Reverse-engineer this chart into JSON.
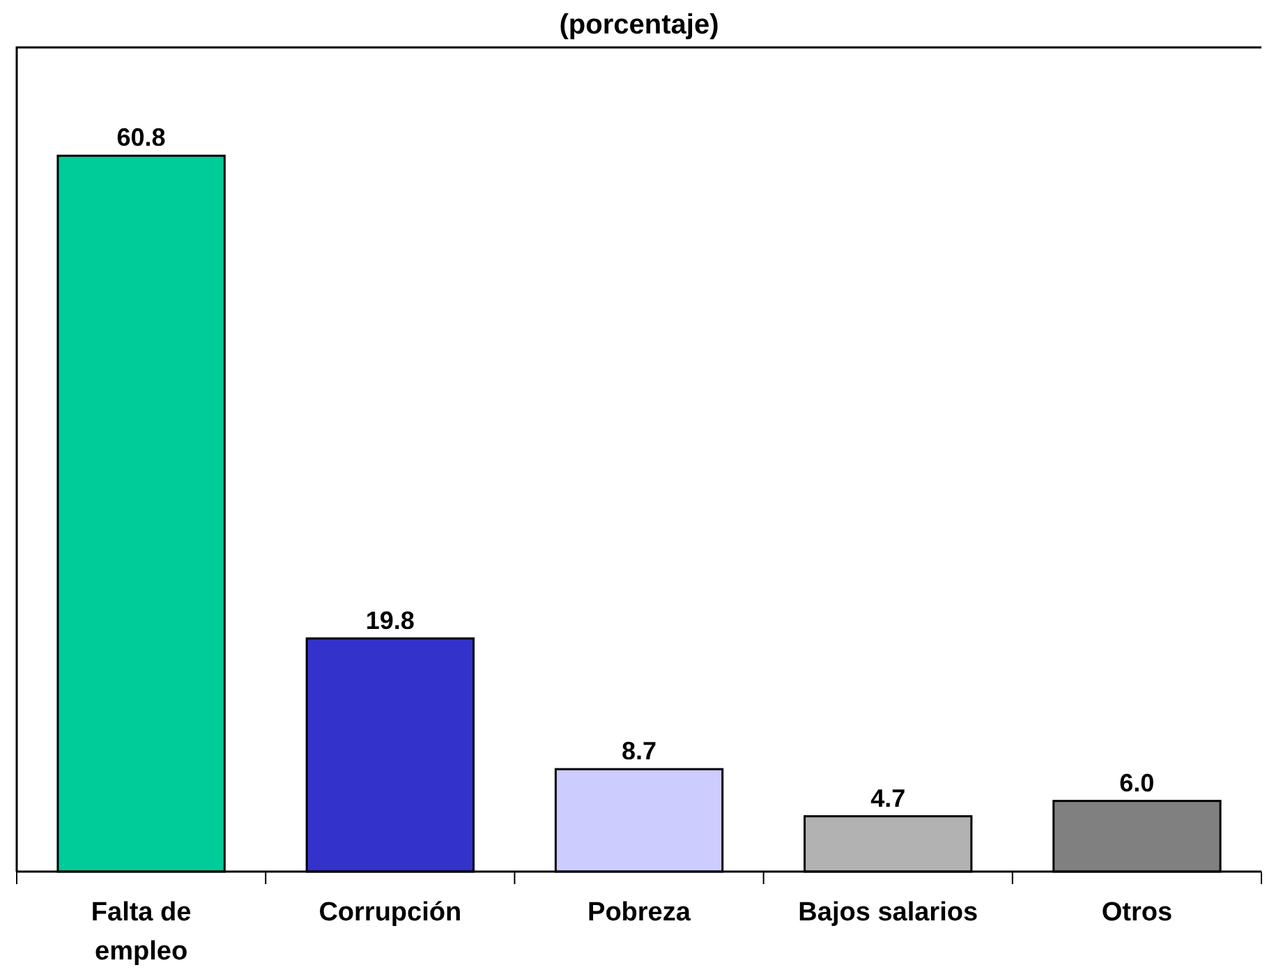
{
  "chart_data": {
    "type": "bar",
    "title": "(porcentaje)",
    "categories": [
      "Falta de empleo",
      "Corrupción",
      "Pobreza",
      "Bajos salarios",
      "Otros"
    ],
    "values": [
      60.8,
      19.8,
      8.7,
      4.7,
      6.0
    ],
    "value_labels": [
      "60.8",
      "19.8",
      "8.7",
      "4.7",
      "6.0"
    ],
    "colors": [
      "#00cc99",
      "#3333cc",
      "#ccccff",
      "#b2b2b2",
      "#808080"
    ],
    "ylim": [
      0,
      70
    ],
    "tick_labels": "x"
  }
}
